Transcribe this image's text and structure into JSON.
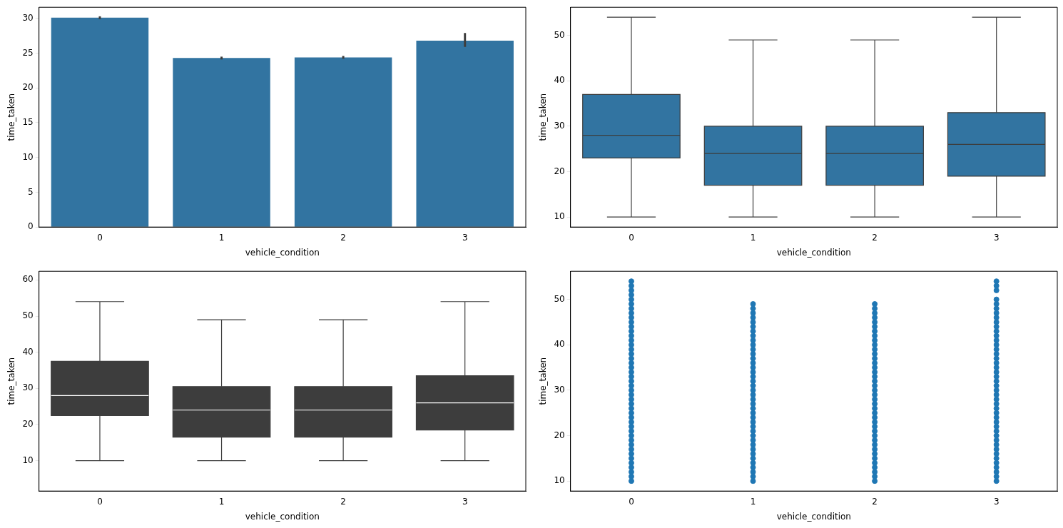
{
  "chart_data": [
    {
      "type": "bar",
      "xlabel": "vehicle_condition",
      "ylabel": "time_taken",
      "categories": [
        "0",
        "1",
        "2",
        "3"
      ],
      "ylim": [
        0,
        31.6
      ],
      "yticks": [
        0,
        5,
        10,
        15,
        20,
        25,
        30
      ],
      "grid": false,
      "legend": false,
      "series": [
        {
          "color": "#3274a1",
          "values": [
            30.1,
            24.3,
            24.4,
            26.8
          ],
          "errors": [
            [
              29.9,
              30.3
            ],
            [
              24.1,
              24.5
            ],
            [
              24.2,
              24.6
            ],
            [
              25.9,
              27.9
            ]
          ]
        }
      ]
    },
    {
      "type": "box",
      "xlabel": "vehicle_condition",
      "ylabel": "time_taken",
      "categories": [
        "0",
        "1",
        "2",
        "3"
      ],
      "ylim": [
        7.8,
        56.2
      ],
      "yticks": [
        10,
        20,
        30,
        40,
        50
      ],
      "grid": false,
      "legend": false,
      "series": [
        {
          "color": "#3274a1",
          "boxes": [
            {
              "low": 10,
              "q1": 23,
              "median": 28,
              "q3": 37,
              "high": 54
            },
            {
              "low": 10,
              "q1": 17,
              "median": 24,
              "q3": 30,
              "high": 49
            },
            {
              "low": 10,
              "q1": 17,
              "median": 24,
              "q3": 30,
              "high": 49
            },
            {
              "low": 10,
              "q1": 19,
              "median": 26,
              "q3": 33,
              "high": 54
            }
          ]
        }
      ]
    },
    {
      "type": "box",
      "xlabel": "vehicle_condition",
      "ylabel": "time_taken",
      "categories": [
        "0",
        "1",
        "2",
        "3"
      ],
      "ylim": [
        1.6,
        62.4
      ],
      "yticks": [
        10,
        20,
        30,
        40,
        50,
        60
      ],
      "grid": false,
      "legend": false,
      "series": [
        {
          "color": "#3d3d3d",
          "boxes": [
            {
              "low": 10,
              "q1": 22.5,
              "median": 28,
              "q3": 37.5,
              "high": 54
            },
            {
              "low": 10,
              "q1": 16.5,
              "median": 24,
              "q3": 30.5,
              "high": 49
            },
            {
              "low": 10,
              "q1": 16.5,
              "median": 24,
              "q3": 30.5,
              "high": 49
            },
            {
              "low": 10,
              "q1": 18.5,
              "median": 26,
              "q3": 33.5,
              "high": 54
            }
          ]
        }
      ]
    },
    {
      "type": "scatter",
      "xlabel": "vehicle_condition",
      "ylabel": "time_taken",
      "categories": [
        "0",
        "1",
        "2",
        "3"
      ],
      "ylim": [
        7.8,
        56.2
      ],
      "yticks": [
        10,
        20,
        30,
        40,
        50
      ],
      "grid": false,
      "legend": false,
      "marker": "circle",
      "series": [
        {
          "color": "#1f77b4",
          "x": [
            "0",
            "0",
            "0",
            "0",
            "0",
            "0",
            "0",
            "0",
            "0",
            "0",
            "0",
            "0",
            "0",
            "0",
            "0",
            "0",
            "0",
            "0",
            "0",
            "0",
            "0",
            "0",
            "0",
            "0",
            "0",
            "0",
            "0",
            "0",
            "0",
            "0",
            "0",
            "0",
            "0",
            "0",
            "0",
            "0",
            "0",
            "0",
            "0",
            "0",
            "0",
            "0",
            "0",
            "0",
            "0",
            "1",
            "1",
            "1",
            "1",
            "1",
            "1",
            "1",
            "1",
            "1",
            "1",
            "1",
            "1",
            "1",
            "1",
            "1",
            "1",
            "1",
            "1",
            "1",
            "1",
            "1",
            "1",
            "1",
            "1",
            "1",
            "1",
            "1",
            "1",
            "1",
            "1",
            "1",
            "1",
            "1",
            "1",
            "1",
            "1",
            "1",
            "1",
            "1",
            "1",
            "2",
            "2",
            "2",
            "2",
            "2",
            "2",
            "2",
            "2",
            "2",
            "2",
            "2",
            "2",
            "2",
            "2",
            "2",
            "2",
            "2",
            "2",
            "2",
            "2",
            "2",
            "2",
            "2",
            "2",
            "2",
            "2",
            "2",
            "2",
            "2",
            "2",
            "2",
            "2",
            "2",
            "2",
            "2",
            "2",
            "2",
            "2",
            "2",
            "2",
            "3",
            "3",
            "3",
            "3",
            "3",
            "3",
            "3",
            "3",
            "3",
            "3",
            "3",
            "3",
            "3",
            "3",
            "3",
            "3",
            "3",
            "3",
            "3",
            "3",
            "3",
            "3",
            "3",
            "3",
            "3",
            "3",
            "3",
            "3",
            "3",
            "3",
            "3",
            "3",
            "3",
            "3",
            "3",
            "3",
            "3",
            "3",
            "3",
            "3",
            "3",
            "3",
            "3",
            "3"
          ],
          "values": [
            10,
            11,
            12,
            13,
            14,
            15,
            16,
            17,
            18,
            19,
            20,
            21,
            22,
            23,
            24,
            25,
            26,
            27,
            28,
            29,
            30,
            31,
            32,
            33,
            34,
            35,
            36,
            37,
            38,
            39,
            40,
            41,
            42,
            43,
            44,
            45,
            46,
            47,
            48,
            49,
            50,
            51,
            52,
            53,
            54,
            10,
            11,
            12,
            13,
            14,
            15,
            16,
            17,
            18,
            19,
            20,
            21,
            22,
            23,
            24,
            25,
            26,
            27,
            28,
            29,
            30,
            31,
            32,
            33,
            34,
            35,
            36,
            37,
            38,
            39,
            40,
            41,
            42,
            43,
            44,
            45,
            46,
            47,
            48,
            49,
            10,
            11,
            12,
            13,
            14,
            15,
            16,
            17,
            18,
            19,
            20,
            21,
            22,
            23,
            24,
            25,
            26,
            27,
            28,
            29,
            30,
            31,
            32,
            33,
            34,
            35,
            36,
            37,
            38,
            39,
            40,
            41,
            42,
            43,
            44,
            45,
            46,
            47,
            48,
            49,
            10,
            11,
            12,
            13,
            14,
            15,
            16,
            17,
            18,
            19,
            20,
            21,
            22,
            23,
            24,
            25,
            26,
            27,
            28,
            29,
            30,
            31,
            32,
            33,
            34,
            35,
            36,
            37,
            38,
            39,
            40,
            41,
            42,
            43,
            44,
            45,
            46,
            47,
            48,
            49,
            50,
            52,
            53,
            54
          ]
        }
      ]
    }
  ]
}
